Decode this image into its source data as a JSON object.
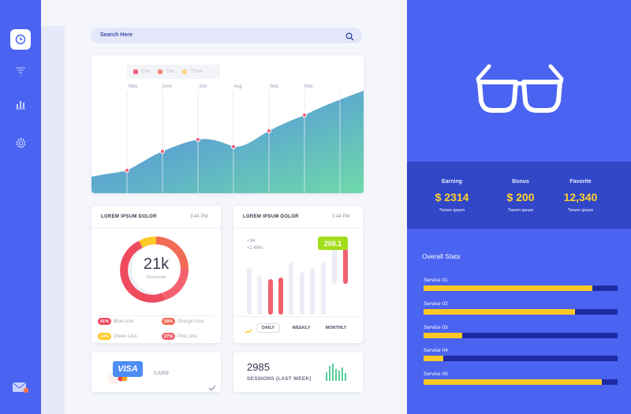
{
  "search": {
    "placeholder": "Search Here"
  },
  "area_chart": {
    "legend": [
      {
        "label": "One",
        "color": "#f35f7b"
      },
      {
        "label": "Two",
        "color": "#f6897d"
      },
      {
        "label": "Three",
        "color": "#fbd389"
      }
    ],
    "months": [
      "May",
      "June",
      "July",
      "Aug",
      "Sep",
      "Nov"
    ]
  },
  "donut_card": {
    "title": "LOREM IPSUM DOLOR",
    "time": "3:44 PM",
    "value": "21k",
    "subtitle": "Downloads",
    "legend": [
      {
        "pct": "41%",
        "label": "Blue Line",
        "color": "#ef4a5e"
      },
      {
        "pct": "18%",
        "label": "Orange Line",
        "color": "#f26b55"
      },
      {
        "pct": "14%",
        "label": "Green Line",
        "color": "#ffc825"
      },
      {
        "pct": "27%",
        "label": "Pink Line",
        "color": "#f5626f"
      }
    ]
  },
  "bar_card": {
    "title": "LOREM IPSUM DOLOR",
    "time": "3:44 PM",
    "stat1": "+34",
    "stat2": "+2.49%",
    "badge": "208.1",
    "tabs": [
      "DAILY",
      "WEEKLY",
      "MONTHLY"
    ]
  },
  "visa_card": {
    "brand": "VISA",
    "label": "CARD"
  },
  "sessions": {
    "value": "2985",
    "label": "SESSIONS (LAST WEEK)"
  },
  "stats": [
    {
      "title": "Earning",
      "value": "$ 2314",
      "sub": "*lorem ipsum"
    },
    {
      "title": "Bonus",
      "value": "$ 200",
      "sub": "*lorem ipsum"
    },
    {
      "title": "Favorite",
      "value": "12,340",
      "sub": "*lorem ipsum"
    }
  ],
  "overall": {
    "title": "Overall Stats",
    "services": [
      {
        "label": "Service  01",
        "fraction": 0.87
      },
      {
        "label": "Service  02",
        "fraction": 0.78
      },
      {
        "label": "Service  03",
        "fraction": 0.2
      },
      {
        "label": "Service  04",
        "fraction": 0.1
      },
      {
        "label": "Service  05",
        "fraction": 0.92
      }
    ]
  },
  "colors": {
    "primary": "#4a63f0",
    "band": "#3147c7",
    "accent_yellow": "#ffc825",
    "accent_green": "#a2dd1a"
  },
  "icons": [
    "app-logo-icon",
    "filter-icon",
    "bar-chart-icon",
    "settings-gear-icon",
    "mail-icon",
    "search-icon",
    "glasses-icon",
    "trend-up-icon",
    "check-icon"
  ]
}
